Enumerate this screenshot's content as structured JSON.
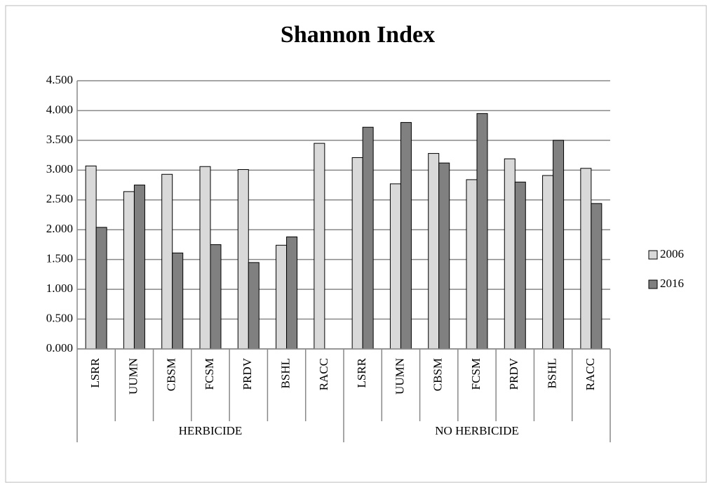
{
  "chart_data": {
    "type": "bar",
    "title": "Shannon Index",
    "groups": [
      {
        "label": "HERBICIDE",
        "categories": [
          "LSRR",
          "UUMN",
          "CBSM",
          "FCSM",
          "PRDV",
          "BSHL",
          "RACC"
        ]
      },
      {
        "label": "NO HERBICIDE",
        "categories": [
          "LSRR",
          "UUMN",
          "CBSM",
          "FCSM",
          "PRDV",
          "BSHL",
          "RACC"
        ]
      }
    ],
    "series": [
      {
        "name": "2006",
        "color": "#d9d9d9",
        "values": [
          3.07,
          2.64,
          2.93,
          3.06,
          3.01,
          1.74,
          3.45,
          3.21,
          2.77,
          3.28,
          2.84,
          3.19,
          2.91,
          3.03
        ]
      },
      {
        "name": "2016",
        "color": "#808080",
        "values": [
          2.04,
          2.75,
          1.61,
          1.75,
          1.45,
          1.88,
          null,
          3.72,
          3.8,
          3.12,
          3.95,
          2.8,
          3.5,
          2.44
        ]
      }
    ],
    "ylim": [
      0,
      4.5
    ],
    "yticks": [
      {
        "value": 0,
        "label": "0.000"
      },
      {
        "value": 0.5,
        "label": "0.500"
      },
      {
        "value": 1,
        "label": "1.000"
      },
      {
        "value": 1.5,
        "label": "1.500"
      },
      {
        "value": 2,
        "label": "2.000"
      },
      {
        "value": 2.5,
        "label": "2.500"
      },
      {
        "value": 3,
        "label": "3.000"
      },
      {
        "value": 3.5,
        "label": "3.500"
      },
      {
        "value": 4,
        "label": "4.000"
      },
      {
        "value": 4.5,
        "label": "4.500"
      }
    ],
    "grid": true,
    "legend": "right"
  }
}
